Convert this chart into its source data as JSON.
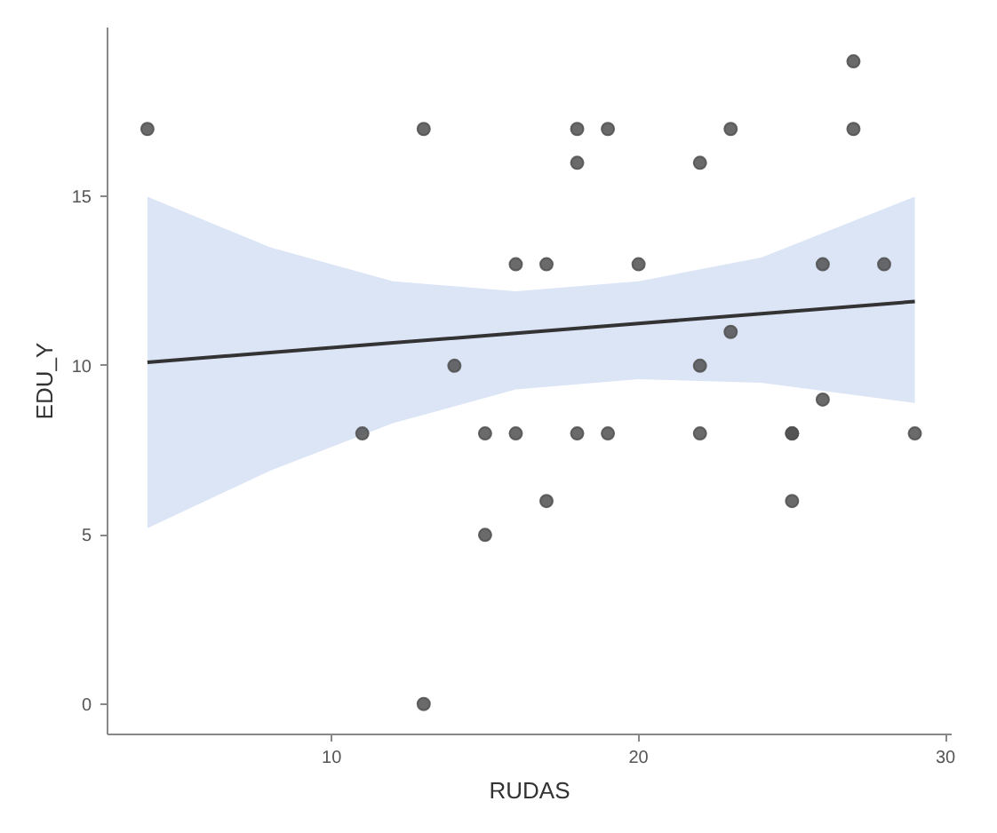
{
  "chart_data": {
    "type": "scatter",
    "xlabel": "RUDAS",
    "ylabel": "EDU_Y",
    "xlim": [
      2.7,
      30.2
    ],
    "ylim": [
      -0.9,
      20.0
    ],
    "xticks": [
      10,
      20,
      30
    ],
    "yticks": [
      0,
      5,
      10,
      15
    ],
    "grid": false,
    "series": [
      {
        "type": "line",
        "color": "#333333",
        "x": [
          4,
          8,
          12,
          16,
          20,
          24,
          29
        ],
        "values": [
          10.1,
          10.39,
          10.68,
          10.96,
          11.25,
          11.54,
          11.9
        ],
        "lower": [
          5.2,
          6.9,
          8.3,
          9.3,
          9.6,
          9.5,
          8.9
        ],
        "upper": [
          15.0,
          13.5,
          12.5,
          12.2,
          12.5,
          13.2,
          15.0
        ],
        "marker": "none"
      },
      {
        "color": "#505050",
        "marker": "circle",
        "x": [
          4,
          11,
          13,
          13,
          14,
          15,
          15,
          16,
          16,
          17,
          17,
          18,
          18,
          18,
          19,
          19,
          20,
          22,
          22,
          22,
          23,
          23,
          25,
          25,
          25,
          26,
          26,
          27,
          27,
          28,
          29
        ],
        "values": [
          17,
          8,
          17,
          0,
          10,
          8,
          5,
          13,
          8,
          13,
          6,
          17,
          16,
          8,
          17,
          8,
          13,
          16,
          10,
          8,
          17,
          11,
          8,
          8,
          6,
          13,
          9,
          19,
          17,
          13,
          8
        ]
      }
    ]
  }
}
